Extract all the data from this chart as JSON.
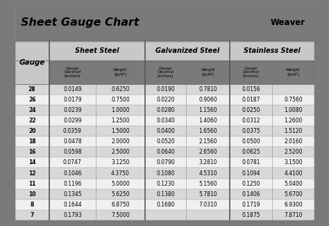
{
  "title": "Sheet Gauge Chart",
  "bg_outer": "#7a7a7a",
  "bg_white": "#ffffff",
  "bg_title_area": "#ffffff",
  "header_bg": "#c8c8c8",
  "row_bg_odd": "#d8d8d8",
  "row_bg_even": "#f0f0f0",
  "border_color": "#555555",
  "section_headers": [
    "Sheet Steel",
    "Galvanized Steel",
    "Stainless Steel"
  ],
  "gauges": [
    "28",
    "26",
    "24",
    "22",
    "20",
    "18",
    "16",
    "14",
    "12",
    "11",
    "10",
    "8",
    "7"
  ],
  "sheet_steel_decimal": [
    "0.0149",
    "0.0179",
    "0.0239",
    "0.0299",
    "0.0359",
    "0.0478",
    "0.0598",
    "0.0747",
    "0.1046",
    "0.1196",
    "0.1345",
    "0.1644",
    "0.1793"
  ],
  "sheet_steel_weight": [
    "0.6250",
    "0.7500",
    "1.0000",
    "1.2500",
    "1.5000",
    "2.0000",
    "2.5000",
    "3.1250",
    "4.3750",
    "5.0000",
    "5.6250",
    "6.8750",
    "7.5000"
  ],
  "galv_decimal": [
    "0.0190",
    "0.0220",
    "0.0280",
    "0.0340",
    "0.0400",
    "0.0520",
    "0.0640",
    "0.0790",
    "0.1080",
    "0.1230",
    "0.1380",
    "0.1680",
    ""
  ],
  "galv_weight": [
    "0.7810",
    "0.9060",
    "1.1560",
    "1.4060",
    "1.6560",
    "2.1560",
    "2.6560",
    "3.2810",
    "4.5310",
    "5.1560",
    "5.7810",
    "7.0310",
    ""
  ],
  "stainless_decimal": [
    "0.0156",
    "0.0187",
    "0.0250",
    "0.0312",
    "0.0375",
    "0.0500",
    "0.0625",
    "0.0781",
    "0.1094",
    "0.1250",
    "0.1406",
    "0.1719",
    "0.1875"
  ],
  "stainless_weight": [
    "",
    "0.7560",
    "1.0080",
    "1.2600",
    "1.5120",
    "2.0160",
    "2.5200",
    "3.1500",
    "4.4100",
    "5.0400",
    "5.6700",
    "6.9300",
    "7.8710"
  ],
  "figsize": [
    4.74,
    3.25
  ],
  "dpi": 100
}
